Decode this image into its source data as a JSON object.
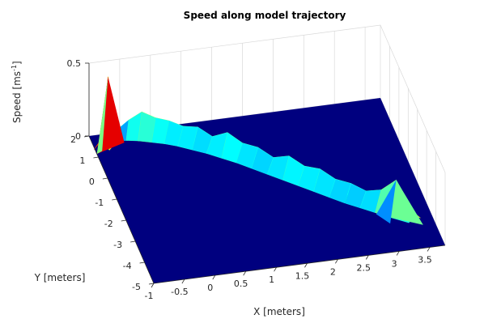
{
  "chart_data": {
    "type": "surface",
    "title": "Speed along model trajectory",
    "xlabel": "X [meters]",
    "ylabel": "Y [meters]",
    "zlabel_main": "Speed [ms",
    "zlabel_sup": "-1",
    "zlabel_close": "]",
    "xlim": [
      -1,
      3.75
    ],
    "ylim": [
      -5,
      2
    ],
    "zlim": [
      0,
      0.5
    ],
    "x_ticks": [
      "-1",
      "-0.5",
      "0",
      "0.5",
      "1",
      "1.5",
      "2",
      "2.5",
      "3",
      "3.5"
    ],
    "y_ticks": [
      "-5",
      "-4",
      "-3",
      "-2",
      "-1",
      "0",
      "1",
      "2"
    ],
    "z_ticks": [
      "0",
      "0.5"
    ],
    "colormap": "jet",
    "background_color": "#00007f",
    "grid": true,
    "trajectory": [
      {
        "x": -0.9,
        "y": 1.3,
        "speed": 0.08
      },
      {
        "x": -0.75,
        "y": 1.6,
        "speed": 0.45
      },
      {
        "x": -0.6,
        "y": 1.75,
        "speed": 0.05
      },
      {
        "x": -0.4,
        "y": 1.7,
        "speed": 0.12
      },
      {
        "x": -0.2,
        "y": 1.6,
        "speed": 0.18
      },
      {
        "x": 0.0,
        "y": 1.45,
        "speed": 0.15
      },
      {
        "x": 0.2,
        "y": 1.3,
        "speed": 0.14
      },
      {
        "x": 0.4,
        "y": 1.1,
        "speed": 0.12
      },
      {
        "x": 0.6,
        "y": 0.85,
        "speed": 0.14
      },
      {
        "x": 0.8,
        "y": 0.6,
        "speed": 0.1
      },
      {
        "x": 1.0,
        "y": 0.3,
        "speed": 0.16
      },
      {
        "x": 1.2,
        "y": 0.0,
        "speed": 0.12
      },
      {
        "x": 1.4,
        "y": -0.35,
        "speed": 0.13
      },
      {
        "x": 1.6,
        "y": -0.7,
        "speed": 0.1
      },
      {
        "x": 1.8,
        "y": -1.05,
        "speed": 0.15
      },
      {
        "x": 2.0,
        "y": -1.4,
        "speed": 0.12
      },
      {
        "x": 2.2,
        "y": -1.75,
        "speed": 0.14
      },
      {
        "x": 2.4,
        "y": -2.1,
        "speed": 0.11
      },
      {
        "x": 2.6,
        "y": -2.45,
        "speed": 0.12
      },
      {
        "x": 2.8,
        "y": -2.75,
        "speed": 0.1
      },
      {
        "x": 3.0,
        "y": -3.05,
        "speed": 0.14
      },
      {
        "x": 3.2,
        "y": -3.35,
        "speed": 0.24
      },
      {
        "x": 3.45,
        "y": -3.7,
        "speed": 0.05
      }
    ]
  }
}
